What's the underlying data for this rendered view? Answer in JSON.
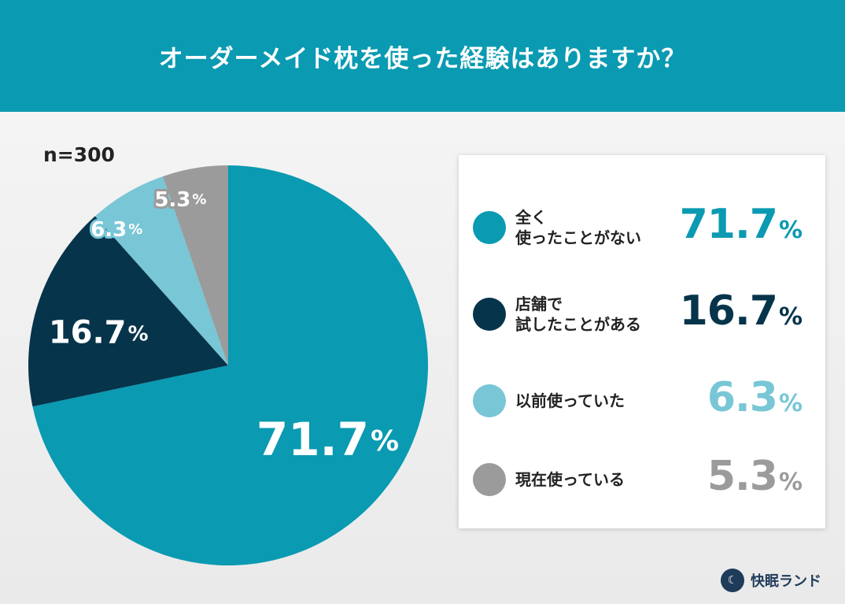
{
  "title": "オーダーメイド枕を使った経験はありますか？",
  "sample_size": "n=300",
  "brand": "快眠ランド",
  "chart_data": {
    "type": "pie",
    "title": "オーダーメイド枕を使った経験はありますか？",
    "note": "n=300",
    "legend_position": "right",
    "slices": [
      {
        "label": "全く\n使ったことがない",
        "value": 71.7,
        "display": "71.7",
        "color": "#0a9ab2"
      },
      {
        "label": "店舗で\n試したことがある",
        "value": 16.7,
        "display": "16.7",
        "color": "#06344b"
      },
      {
        "label": "以前使っていた",
        "value": 6.3,
        "display": "6.3",
        "color": "#78c6d6"
      },
      {
        "label": "現在使っている",
        "value": 5.3,
        "display": "5.3",
        "color": "#9b9b9b"
      }
    ],
    "unit": "%"
  }
}
